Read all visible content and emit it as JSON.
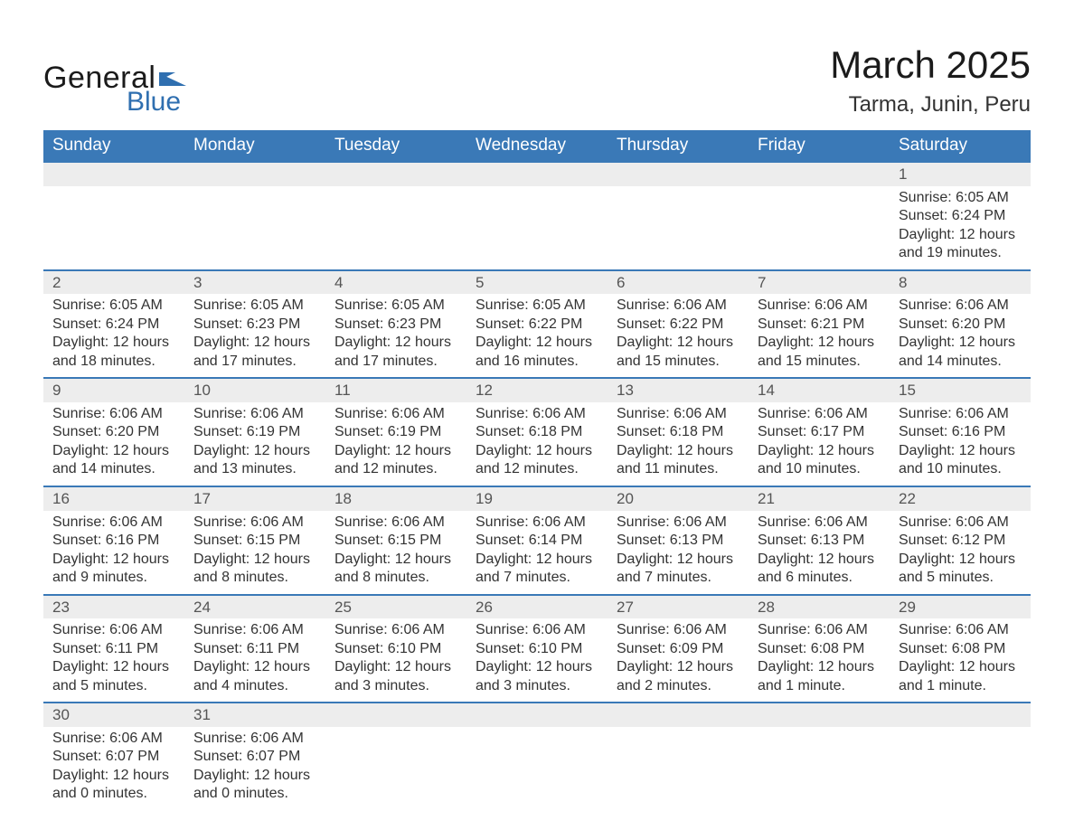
{
  "logo": {
    "main": "General",
    "sub": "Blue",
    "flag_color": "#2f6fb0"
  },
  "header": {
    "month_title": "March 2025",
    "location": "Tarma, Junin, Peru"
  },
  "colors": {
    "header_bg": "#3a79b7",
    "header_text": "#ffffff",
    "daynum_bg": "#ededed",
    "daynum_border": "#3a79b7",
    "body_text": "#333333",
    "logo_blue": "#2f6fb0",
    "page_bg": "#ffffff"
  },
  "typography": {
    "month_title_fontsize": 42,
    "location_fontsize": 24,
    "dayheader_fontsize": 19,
    "cell_fontsize": 16,
    "logo_general_fontsize": 34,
    "logo_blue_fontsize": 30
  },
  "calendar": {
    "type": "table",
    "columns": [
      "Sunday",
      "Monday",
      "Tuesday",
      "Wednesday",
      "Thursday",
      "Friday",
      "Saturday"
    ],
    "weeks": [
      [
        null,
        null,
        null,
        null,
        null,
        null,
        {
          "d": "1",
          "sr": "Sunrise: 6:05 AM",
          "ss": "Sunset: 6:24 PM",
          "dl1": "Daylight: 12 hours",
          "dl2": "and 19 minutes."
        }
      ],
      [
        {
          "d": "2",
          "sr": "Sunrise: 6:05 AM",
          "ss": "Sunset: 6:24 PM",
          "dl1": "Daylight: 12 hours",
          "dl2": "and 18 minutes."
        },
        {
          "d": "3",
          "sr": "Sunrise: 6:05 AM",
          "ss": "Sunset: 6:23 PM",
          "dl1": "Daylight: 12 hours",
          "dl2": "and 17 minutes."
        },
        {
          "d": "4",
          "sr": "Sunrise: 6:05 AM",
          "ss": "Sunset: 6:23 PM",
          "dl1": "Daylight: 12 hours",
          "dl2": "and 17 minutes."
        },
        {
          "d": "5",
          "sr": "Sunrise: 6:05 AM",
          "ss": "Sunset: 6:22 PM",
          "dl1": "Daylight: 12 hours",
          "dl2": "and 16 minutes."
        },
        {
          "d": "6",
          "sr": "Sunrise: 6:06 AM",
          "ss": "Sunset: 6:22 PM",
          "dl1": "Daylight: 12 hours",
          "dl2": "and 15 minutes."
        },
        {
          "d": "7",
          "sr": "Sunrise: 6:06 AM",
          "ss": "Sunset: 6:21 PM",
          "dl1": "Daylight: 12 hours",
          "dl2": "and 15 minutes."
        },
        {
          "d": "8",
          "sr": "Sunrise: 6:06 AM",
          "ss": "Sunset: 6:20 PM",
          "dl1": "Daylight: 12 hours",
          "dl2": "and 14 minutes."
        }
      ],
      [
        {
          "d": "9",
          "sr": "Sunrise: 6:06 AM",
          "ss": "Sunset: 6:20 PM",
          "dl1": "Daylight: 12 hours",
          "dl2": "and 14 minutes."
        },
        {
          "d": "10",
          "sr": "Sunrise: 6:06 AM",
          "ss": "Sunset: 6:19 PM",
          "dl1": "Daylight: 12 hours",
          "dl2": "and 13 minutes."
        },
        {
          "d": "11",
          "sr": "Sunrise: 6:06 AM",
          "ss": "Sunset: 6:19 PM",
          "dl1": "Daylight: 12 hours",
          "dl2": "and 12 minutes."
        },
        {
          "d": "12",
          "sr": "Sunrise: 6:06 AM",
          "ss": "Sunset: 6:18 PM",
          "dl1": "Daylight: 12 hours",
          "dl2": "and 12 minutes."
        },
        {
          "d": "13",
          "sr": "Sunrise: 6:06 AM",
          "ss": "Sunset: 6:18 PM",
          "dl1": "Daylight: 12 hours",
          "dl2": "and 11 minutes."
        },
        {
          "d": "14",
          "sr": "Sunrise: 6:06 AM",
          "ss": "Sunset: 6:17 PM",
          "dl1": "Daylight: 12 hours",
          "dl2": "and 10 minutes."
        },
        {
          "d": "15",
          "sr": "Sunrise: 6:06 AM",
          "ss": "Sunset: 6:16 PM",
          "dl1": "Daylight: 12 hours",
          "dl2": "and 10 minutes."
        }
      ],
      [
        {
          "d": "16",
          "sr": "Sunrise: 6:06 AM",
          "ss": "Sunset: 6:16 PM",
          "dl1": "Daylight: 12 hours",
          "dl2": "and 9 minutes."
        },
        {
          "d": "17",
          "sr": "Sunrise: 6:06 AM",
          "ss": "Sunset: 6:15 PM",
          "dl1": "Daylight: 12 hours",
          "dl2": "and 8 minutes."
        },
        {
          "d": "18",
          "sr": "Sunrise: 6:06 AM",
          "ss": "Sunset: 6:15 PM",
          "dl1": "Daylight: 12 hours",
          "dl2": "and 8 minutes."
        },
        {
          "d": "19",
          "sr": "Sunrise: 6:06 AM",
          "ss": "Sunset: 6:14 PM",
          "dl1": "Daylight: 12 hours",
          "dl2": "and 7 minutes."
        },
        {
          "d": "20",
          "sr": "Sunrise: 6:06 AM",
          "ss": "Sunset: 6:13 PM",
          "dl1": "Daylight: 12 hours",
          "dl2": "and 7 minutes."
        },
        {
          "d": "21",
          "sr": "Sunrise: 6:06 AM",
          "ss": "Sunset: 6:13 PM",
          "dl1": "Daylight: 12 hours",
          "dl2": "and 6 minutes."
        },
        {
          "d": "22",
          "sr": "Sunrise: 6:06 AM",
          "ss": "Sunset: 6:12 PM",
          "dl1": "Daylight: 12 hours",
          "dl2": "and 5 minutes."
        }
      ],
      [
        {
          "d": "23",
          "sr": "Sunrise: 6:06 AM",
          "ss": "Sunset: 6:11 PM",
          "dl1": "Daylight: 12 hours",
          "dl2": "and 5 minutes."
        },
        {
          "d": "24",
          "sr": "Sunrise: 6:06 AM",
          "ss": "Sunset: 6:11 PM",
          "dl1": "Daylight: 12 hours",
          "dl2": "and 4 minutes."
        },
        {
          "d": "25",
          "sr": "Sunrise: 6:06 AM",
          "ss": "Sunset: 6:10 PM",
          "dl1": "Daylight: 12 hours",
          "dl2": "and 3 minutes."
        },
        {
          "d": "26",
          "sr": "Sunrise: 6:06 AM",
          "ss": "Sunset: 6:10 PM",
          "dl1": "Daylight: 12 hours",
          "dl2": "and 3 minutes."
        },
        {
          "d": "27",
          "sr": "Sunrise: 6:06 AM",
          "ss": "Sunset: 6:09 PM",
          "dl1": "Daylight: 12 hours",
          "dl2": "and 2 minutes."
        },
        {
          "d": "28",
          "sr": "Sunrise: 6:06 AM",
          "ss": "Sunset: 6:08 PM",
          "dl1": "Daylight: 12 hours",
          "dl2": "and 1 minute."
        },
        {
          "d": "29",
          "sr": "Sunrise: 6:06 AM",
          "ss": "Sunset: 6:08 PM",
          "dl1": "Daylight: 12 hours",
          "dl2": "and 1 minute."
        }
      ],
      [
        {
          "d": "30",
          "sr": "Sunrise: 6:06 AM",
          "ss": "Sunset: 6:07 PM",
          "dl1": "Daylight: 12 hours",
          "dl2": "and 0 minutes."
        },
        {
          "d": "31",
          "sr": "Sunrise: 6:06 AM",
          "ss": "Sunset: 6:07 PM",
          "dl1": "Daylight: 12 hours",
          "dl2": "and 0 minutes."
        },
        null,
        null,
        null,
        null,
        null
      ]
    ]
  }
}
